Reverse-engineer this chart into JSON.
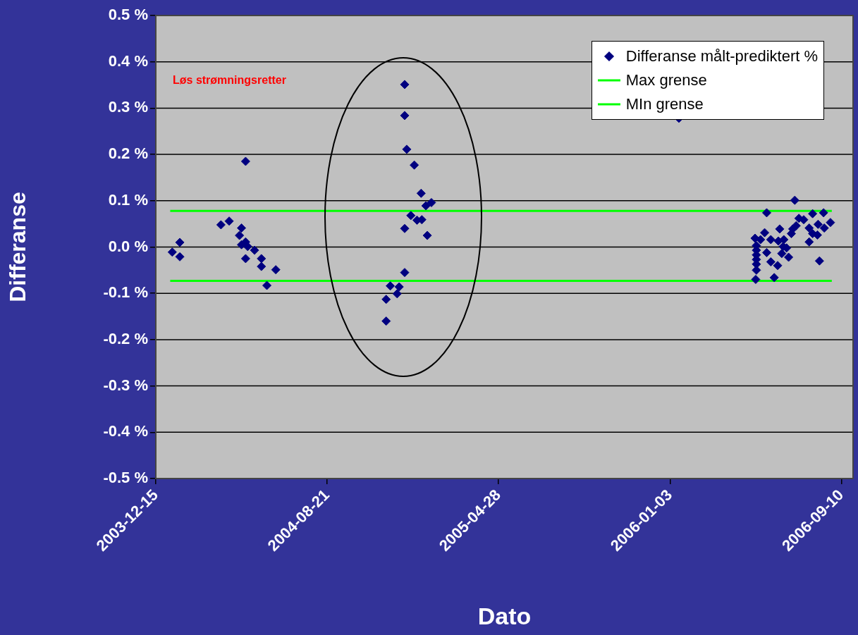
{
  "chart_data": {
    "type": "scatter",
    "xlabel": "Dato",
    "ylabel": "Differanse",
    "xlim": [
      "2003-12-15",
      "2006-09-27"
    ],
    "xticks": [
      "2003-12-15",
      "2004-08-21",
      "2005-04-28",
      "2006-01-03",
      "2006-09-10"
    ],
    "ylim": [
      -0.5,
      0.5
    ],
    "yticks": [
      {
        "value": -0.5,
        "label": "-0.5 %"
      },
      {
        "value": -0.4,
        "label": "-0.4 %"
      },
      {
        "value": -0.3,
        "label": "-0.3 %"
      },
      {
        "value": -0.2,
        "label": "-0.2 %"
      },
      {
        "value": -0.1,
        "label": "-0.1 %"
      },
      {
        "value": 0,
        "label": "0.0 %"
      },
      {
        "value": 0.1,
        "label": "0.1 %"
      },
      {
        "value": 0.2,
        "label": "0.2 %"
      },
      {
        "value": 0.3,
        "label": "0.3 %"
      },
      {
        "value": 0.4,
        "label": "0.4 %"
      },
      {
        "value": 0.5,
        "label": "0.5 %"
      }
    ],
    "grid": "y",
    "legend": "top right",
    "annotations": [
      "Løs strømningsretter"
    ],
    "series": [
      {
        "name": "Differanse målt-prediktert %",
        "marker": "diamond",
        "color": "#000080",
        "x": [
          "2004-01-08",
          "2004-01-19",
          "2004-01-19",
          "2004-03-19",
          "2004-03-31",
          "2004-04-24",
          "2004-04-18",
          "2004-04-15",
          "2004-04-18",
          "2004-04-24",
          "2004-04-27",
          "2004-04-24",
          "2004-05-07",
          "2004-05-17",
          "2004-05-17",
          "2004-06-07",
          "2004-05-25",
          "2004-12-12",
          "2004-12-12",
          "2004-12-15",
          "2004-12-26",
          "2005-01-05",
          "2005-01-12",
          "2005-01-20",
          "2004-12-21",
          "2004-12-30",
          "2005-01-06",
          "2004-12-12",
          "2005-01-14",
          "2004-12-12",
          "2004-11-21",
          "2004-12-04",
          "2004-12-01",
          "2004-11-15",
          "2004-11-15",
          "2006-01-16",
          "2006-07-04",
          "2006-05-24",
          "2006-07-30",
          "2006-08-15",
          "2006-08-25",
          "2006-07-10",
          "2006-07-17",
          "2006-06-12",
          "2006-07-06",
          "2006-07-01",
          "2006-06-29",
          "2006-07-25",
          "2006-08-07",
          "2006-08-16",
          "2006-07-30",
          "2006-08-06",
          "2006-07-25",
          "2006-08-09",
          "2006-05-07",
          "2006-05-21",
          "2006-05-15",
          "2006-05-30",
          "2006-06-10",
          "2006-06-18",
          "2006-05-09",
          "2006-05-09",
          "2006-05-09",
          "2006-05-09",
          "2006-05-09",
          "2006-05-09",
          "2006-05-24",
          "2006-06-17",
          "2006-06-22",
          "2006-06-15",
          "2006-06-25",
          "2006-05-30",
          "2006-06-09",
          "2006-05-08",
          "2006-06-04"
        ],
        "values": [
          -0.011,
          0.01,
          -0.021,
          0.048,
          0.056,
          0.185,
          0.041,
          0.025,
          0.005,
          0.011,
          0.001,
          -0.025,
          -0.007,
          -0.025,
          -0.042,
          -0.049,
          -0.083,
          0.351,
          0.284,
          0.211,
          0.177,
          0.116,
          0.089,
          0.096,
          0.068,
          0.058,
          0.059,
          0.04,
          0.025,
          -0.055,
          -0.084,
          -0.086,
          -0.101,
          -0.113,
          -0.16,
          0.278,
          0.101,
          0.074,
          0.072,
          0.074,
          0.053,
          0.062,
          0.059,
          0.039,
          0.046,
          0.039,
          0.029,
          0.041,
          0.049,
          0.041,
          0.029,
          0.026,
          0.011,
          -0.03,
          0.019,
          0.031,
          0.016,
          0.016,
          0.013,
          0.016,
          0.003,
          -0.007,
          -0.017,
          -0.027,
          -0.037,
          -0.05,
          -0.012,
          0.001,
          -0.002,
          -0.014,
          -0.022,
          -0.032,
          -0.04,
          -0.07,
          -0.066
        ]
      },
      {
        "name": "Max grense",
        "type": "line",
        "marker": "none",
        "color": "#00ff00",
        "line_style": "solid",
        "x": [
          "2004-01-05",
          "2006-08-27"
        ],
        "values": [
          0.078,
          0.078
        ]
      },
      {
        "name": "MIn grense",
        "type": "line",
        "marker": "none",
        "color": "#00ff00",
        "line_style": "solid",
        "x": [
          "2004-01-05",
          "2006-08-27"
        ],
        "values": [
          -0.073,
          -0.073
        ]
      }
    ]
  }
}
